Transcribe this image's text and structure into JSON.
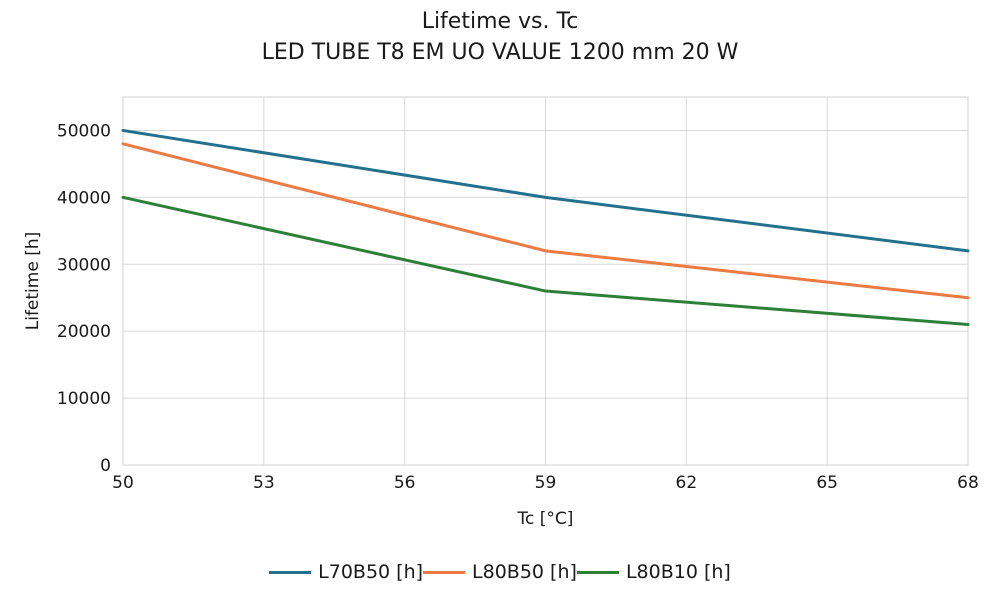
{
  "title": {
    "line1": "Lifetime vs. Tc",
    "line2": "LED TUBE T8 EM UO VALUE 1200 mm 20 W"
  },
  "chart_data": {
    "type": "line",
    "title": "Lifetime vs. Tc — LED TUBE T8 EM UO VALUE 1200 mm 20 W",
    "xlabel": "Tc [°C]",
    "ylabel": "Lifetime [h]",
    "xlim": [
      50,
      68
    ],
    "ylim": [
      0,
      55000
    ],
    "x_ticks": [
      50,
      53,
      56,
      59,
      62,
      65,
      68
    ],
    "y_ticks": [
      0,
      10000,
      20000,
      30000,
      40000,
      50000
    ],
    "grid": true,
    "legend_position": "bottom-center",
    "x": [
      50,
      59,
      68
    ],
    "series": [
      {
        "name": "L70B50 [h]",
        "color": "#24718f",
        "values": [
          50000,
          40000,
          32000
        ]
      },
      {
        "name": "L80B50 [h]",
        "color": "#ec7b43",
        "values": [
          48000,
          32000,
          25000
        ]
      },
      {
        "name": "L80B10 [h]",
        "color": "#2c8038",
        "values": [
          40000,
          26000,
          21000
        ]
      }
    ],
    "colors": {
      "grid": "#d9d9d9",
      "spine": "#d0d0d0",
      "text": "#1a1a1a"
    }
  }
}
